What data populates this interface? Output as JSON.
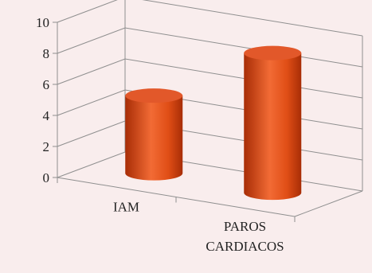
{
  "chart_data": {
    "type": "bar",
    "style": "3d-cylinder",
    "categories": [
      "IAM",
      "PAROS CARDIACOS"
    ],
    "category_lines": [
      [
        "IAM"
      ],
      [
        "PAROS",
        "CARDIACOS"
      ]
    ],
    "values": [
      5,
      9
    ],
    "ylim": [
      0,
      10
    ],
    "yticks": [
      0,
      2,
      4,
      6,
      8,
      10
    ],
    "ytick_labels": [
      "0",
      "2",
      "4",
      "6",
      "8",
      "10"
    ],
    "grid": true,
    "legend": "none",
    "colors": {
      "bar_light": "#f26b35",
      "bar_mid": "#e04e16",
      "bar_dark": "#a82d06",
      "bar_top": "#e2582a",
      "grid": "#8f8f8f",
      "background": "#f9eded"
    }
  }
}
